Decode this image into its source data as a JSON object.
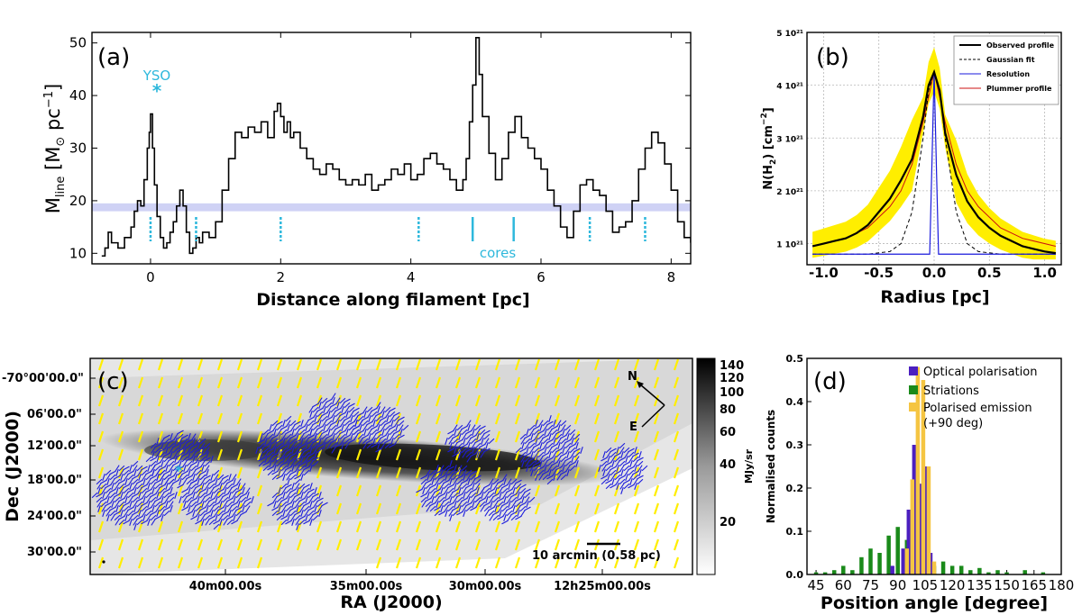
{
  "colors": {
    "cyan": "#2eb8dc",
    "band": "#cfd2f5",
    "yellow": "#ffee00",
    "blue": "#1a1adc",
    "purple": "#4b1fc0",
    "green": "#1a8a1a",
    "gold": "#f5c542"
  },
  "panel_a": {
    "label": "(a)",
    "xlabel": "Distance along filament [pc]",
    "ylabel_main": "M",
    "ylabel_sub": "line",
    "ylabel_units": " [M",
    "ylabel_sun": "⊙",
    "ylabel_pc": " pc",
    "ylabel_exp": "−1",
    "ylabel_close": "]",
    "yso_label": "YSO",
    "yso_marker": "*",
    "cores_label": "cores"
  },
  "panel_b": {
    "label": "(b)",
    "xlabel": "Radius [pc]",
    "ylabel": "N(H",
    "ylabel_sub": "2",
    "ylabel_units": ") [cm",
    "ylabel_exp": "−2",
    "ylabel_close": "]",
    "legend": [
      "Observed profile",
      "Gaussian fit",
      "Resolution",
      "Plummer profile"
    ]
  },
  "panel_c": {
    "label": "(c)",
    "xlabel": "RA (J2000)",
    "ylabel": "Dec (J2000)",
    "yticks": [
      "-70°00'00.0\"",
      "06'00.0\"",
      "12'00.0\"",
      "18'00.0\"",
      "24'00.0\"",
      "30'00.0\""
    ],
    "xticks": [
      "40m00.00s",
      "35m00.00s",
      "30m00.00s",
      "12h25m00.00s"
    ],
    "colorbar_ticks": [
      "140",
      "120",
      "100",
      "80",
      "60",
      "40",
      "20"
    ],
    "colorbar_label": "MJy/sr",
    "north": "N",
    "east": "E",
    "scalebar": "10 arcmin (0.58 pc)"
  },
  "panel_d": {
    "label": "(d)",
    "xlabel": "Position angle [degree]",
    "ylabel": "Normalised counts",
    "legend": [
      "Optical polarisation",
      "Striations",
      "Polarised emission",
      "(+90 deg)"
    ]
  },
  "chart_data": [
    {
      "type": "line",
      "panel": "(a)",
      "xlabel": "Distance along filament [pc]",
      "ylabel": "M_line [M_sun pc^-1]",
      "xlim": [
        -0.9,
        8.3
      ],
      "ylim": [
        8,
        52
      ],
      "xticks": [
        0,
        2,
        4,
        6,
        8
      ],
      "yticks": [
        10,
        20,
        30,
        40,
        50
      ],
      "band": [
        18,
        19.5
      ],
      "series": [
        {
          "x": [
            -0.75,
            -0.7,
            -0.65,
            -0.6,
            -0.5,
            -0.4,
            -0.3,
            -0.25,
            -0.2,
            -0.15,
            -0.1,
            -0.05,
            -0.02,
            0,
            0.03,
            0.06,
            0.1,
            0.15,
            0.2,
            0.25,
            0.3,
            0.35,
            0.4,
            0.45,
            0.5,
            0.55,
            0.6,
            0.65,
            0.7,
            0.75,
            0.8,
            0.9,
            1.0,
            1.1,
            1.2,
            1.3,
            1.4,
            1.5,
            1.6,
            1.7,
            1.8,
            1.9,
            1.95,
            2.0,
            2.05,
            2.1,
            2.15,
            2.2,
            2.3,
            2.4,
            2.5,
            2.6,
            2.7,
            2.8,
            2.9,
            3.0,
            3.1,
            3.2,
            3.3,
            3.4,
            3.5,
            3.6,
            3.7,
            3.8,
            3.9,
            4.0,
            4.1,
            4.2,
            4.3,
            4.4,
            4.5,
            4.6,
            4.7,
            4.8,
            4.85,
            4.9,
            4.95,
            5.0,
            5.05,
            5.1,
            5.2,
            5.3,
            5.4,
            5.5,
            5.6,
            5.7,
            5.8,
            5.9,
            6.0,
            6.1,
            6.2,
            6.3,
            6.4,
            6.5,
            6.6,
            6.7,
            6.8,
            6.9,
            7.0,
            7.1,
            7.2,
            7.3,
            7.4,
            7.5,
            7.6,
            7.7,
            7.8,
            7.9,
            8.0,
            8.1,
            8.2,
            8.3
          ],
          "y": [
            9.5,
            11,
            14,
            12,
            11,
            13,
            15,
            18,
            20,
            19,
            24,
            30,
            33,
            36.5,
            30,
            23,
            17,
            13,
            11,
            12,
            14,
            16,
            19,
            22,
            19,
            14,
            10,
            11,
            13,
            12,
            14,
            13,
            16,
            22,
            28,
            33,
            32,
            34,
            33,
            35,
            32,
            37,
            38.5,
            36,
            33,
            35,
            32,
            33,
            30,
            28,
            26,
            25,
            27,
            26,
            24,
            23,
            24,
            23,
            25,
            22,
            23,
            24,
            26,
            25,
            27,
            24,
            25,
            28,
            29,
            27,
            26,
            24,
            22,
            24,
            28,
            35,
            42,
            51,
            44,
            36,
            29,
            24,
            28,
            33,
            36,
            32,
            30,
            28,
            26,
            22,
            19,
            15,
            13,
            18,
            23,
            24,
            22,
            21,
            18,
            14,
            15,
            16,
            20,
            26,
            30,
            33,
            31,
            27,
            22,
            16,
            13,
            12
          ]
        }
      ],
      "annotations": [
        "YSO",
        "cores"
      ]
    },
    {
      "type": "line",
      "panel": "(b)",
      "xlabel": "Radius [pc]",
      "ylabel": "N(H2) [cm^-2]",
      "xlim": [
        -1.15,
        1.15
      ],
      "ylim": [
        0.6,
        5.0
      ],
      "xticks": [
        -1.0,
        -0.5,
        0.0,
        0.5,
        1.0
      ],
      "yticks": [
        1,
        2,
        3,
        4,
        5
      ],
      "ytick_labels": [
        "1 10²¹",
        "2 10²¹",
        "3 10²¹",
        "4 10²¹",
        "5 10²¹"
      ],
      "series": [
        {
          "name": "Observed profile",
          "x": [
            -1.1,
            -1.0,
            -0.9,
            -0.8,
            -0.7,
            -0.6,
            -0.5,
            -0.4,
            -0.3,
            -0.2,
            -0.1,
            -0.05,
            0,
            0.05,
            0.1,
            0.2,
            0.3,
            0.4,
            0.5,
            0.6,
            0.7,
            0.8,
            0.9,
            1.0,
            1.1
          ],
          "y": [
            0.95,
            1.0,
            1.05,
            1.1,
            1.2,
            1.35,
            1.6,
            1.85,
            2.2,
            2.6,
            3.4,
            4.0,
            4.25,
            3.9,
            3.1,
            2.3,
            1.8,
            1.5,
            1.3,
            1.15,
            1.05,
            0.95,
            0.9,
            0.85,
            0.82
          ]
        },
        {
          "name": "Gaussian fit",
          "x": [
            -1.1,
            -0.6,
            -0.4,
            -0.3,
            -0.2,
            -0.1,
            -0.05,
            0,
            0.05,
            0.1,
            0.2,
            0.3,
            0.4,
            0.6,
            1.1
          ],
          "y": [
            0.8,
            0.8,
            0.85,
            1.0,
            1.6,
            3.0,
            3.9,
            4.25,
            3.9,
            3.0,
            1.6,
            1.0,
            0.85,
            0.8,
            0.8
          ]
        },
        {
          "name": "Resolution",
          "x": [
            -1.1,
            -0.04,
            -0.02,
            0,
            0.02,
            0.04,
            1.1
          ],
          "y": [
            0.8,
            0.8,
            2.5,
            4.25,
            2.5,
            0.8,
            0.8
          ]
        },
        {
          "name": "Plummer profile",
          "x": [
            -1.1,
            -0.8,
            -0.6,
            -0.4,
            -0.3,
            -0.2,
            -0.1,
            0,
            0.1,
            0.2,
            0.3,
            0.4,
            0.6,
            0.8,
            1.1
          ],
          "y": [
            0.95,
            1.1,
            1.3,
            1.7,
            2.0,
            2.5,
            3.3,
            4.25,
            3.3,
            2.5,
            2.0,
            1.7,
            1.3,
            1.1,
            0.95
          ]
        }
      ]
    },
    {
      "type": "heatmap",
      "panel": "(c)",
      "xlabel": "RA (J2000)",
      "ylabel": "Dec (J2000)",
      "colorbar_label": "MJy/sr",
      "colorbar_ticks": [
        20,
        40,
        60,
        80,
        100,
        120,
        140
      ]
    },
    {
      "type": "bar",
      "panel": "(d)",
      "xlabel": "Position angle [degree]",
      "ylabel": "Normalised counts",
      "xlim": [
        40,
        180
      ],
      "ylim": [
        0,
        0.5
      ],
      "xticks": [
        45,
        60,
        75,
        90,
        105,
        120,
        135,
        150,
        165,
        180
      ],
      "yticks": [
        0.0,
        0.1,
        0.2,
        0.3,
        0.4,
        0.5
      ],
      "series": [
        {
          "name": "Optical polarisation",
          "x": [
            87,
            93,
            96,
            99,
            102,
            105,
            108
          ],
          "y": [
            0.02,
            0.06,
            0.15,
            0.3,
            0.21,
            0.25,
            0.05
          ]
        },
        {
          "name": "Striations",
          "x": [
            45,
            50,
            55,
            60,
            65,
            70,
            75,
            80,
            85,
            90,
            95,
            100,
            105,
            110,
            115,
            120,
            125,
            130,
            135,
            140,
            145,
            150,
            160,
            170
          ],
          "y": [
            0.005,
            0.005,
            0.01,
            0.02,
            0.01,
            0.04,
            0.06,
            0.05,
            0.09,
            0.11,
            0.08,
            0.13,
            0.07,
            0.02,
            0.03,
            0.02,
            0.02,
            0.01,
            0.015,
            0.005,
            0.01,
            0.005,
            0.01,
            0.005
          ]
        },
        {
          "name": "Polarised emission (+90 deg)",
          "x": [
            95,
            98,
            101,
            104,
            107,
            110
          ],
          "y": [
            0.06,
            0.22,
            0.48,
            0.45,
            0.25,
            0.03
          ]
        }
      ]
    }
  ]
}
